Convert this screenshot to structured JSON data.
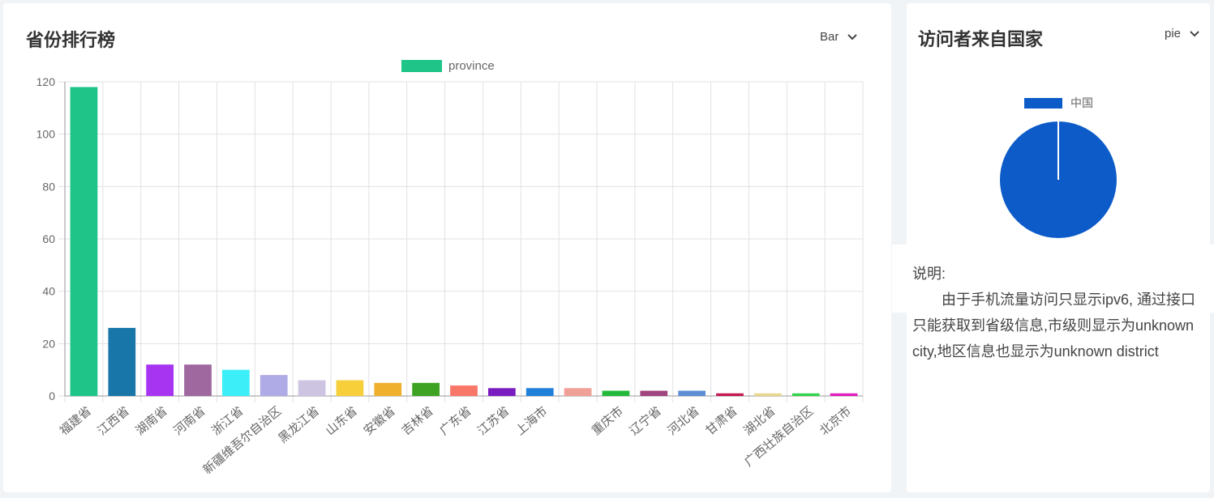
{
  "left_panel": {
    "title": "省份排行榜",
    "chart_select": "Bar"
  },
  "right_panel": {
    "title": "访问者来自国家",
    "chart_select": "pie"
  },
  "note": {
    "label": "说明:",
    "text": "由于手机流量访问只显示ipv6, 通过接口只能获取到省级信息,市级则显示为unknown  city,地区信息也显示为unknown district"
  },
  "chart_data": [
    {
      "type": "bar",
      "legend": [
        "province"
      ],
      "legend_placement": "top-center",
      "grid": true,
      "ylim": [
        0,
        120
      ],
      "yticks": [
        0,
        20,
        40,
        60,
        80,
        100,
        120
      ],
      "categories": [
        "福建省",
        "江西省",
        "湖南省",
        "河南省",
        "浙江省",
        "新疆维吾尔自治区",
        "黑龙江省",
        "山东省",
        "安徽省",
        "吉林省",
        "广东省",
        "江苏省",
        "上海市",
        "",
        "重庆市",
        "辽宁省",
        "河北省",
        "甘肃省",
        "湖北省",
        "广西壮族自治区",
        "北京市"
      ],
      "series": [
        {
          "name": "province",
          "values": [
            118,
            26,
            12,
            12,
            10,
            8,
            6,
            6,
            5,
            5,
            4,
            3,
            3,
            3,
            2,
            2,
            2,
            1,
            1,
            1,
            1
          ]
        }
      ],
      "colors": [
        "#1fc489",
        "#1976a8",
        "#a734f0",
        "#9f689f",
        "#3beef7",
        "#aeabe7",
        "#cdc4e2",
        "#f6cf3a",
        "#efb12d",
        "#3ea322",
        "#f97769",
        "#7a1dc0",
        "#1f7fd9",
        "#f0a096",
        "#24b93a",
        "#a0457f",
        "#5d8fd4",
        "#c5194e",
        "#e8d78c",
        "#2fd44a",
        "#e01cbe"
      ],
      "legend_color": "#1fc489"
    },
    {
      "type": "pie",
      "legend": [
        "中国"
      ],
      "legend_placement": "top-center",
      "slices": [
        {
          "label": "中国",
          "value": 1
        }
      ],
      "colors": [
        "#0c5bc8"
      ]
    }
  ]
}
